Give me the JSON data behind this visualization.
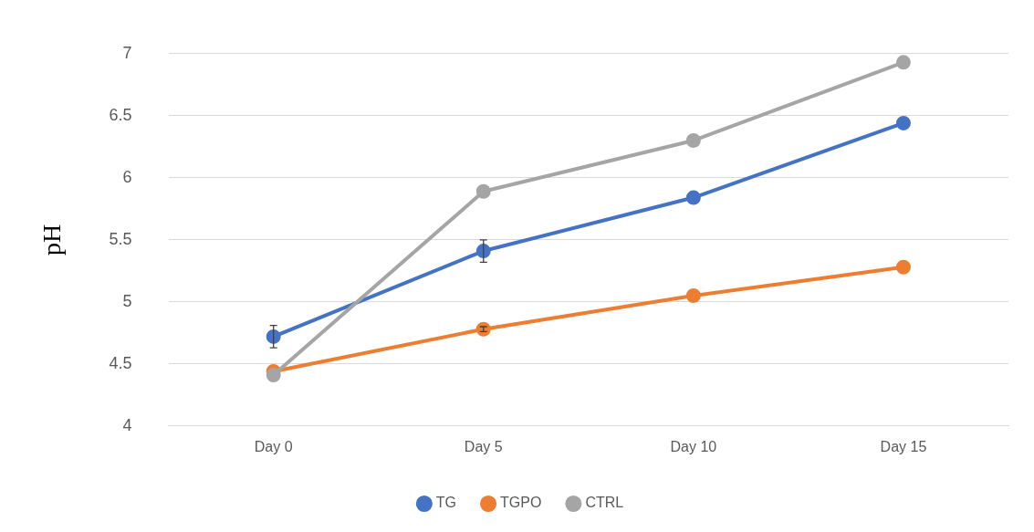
{
  "chart_data": {
    "type": "line",
    "ylabel": "pH",
    "categories": [
      "Day 0",
      "Day 5",
      "Day 10",
      "Day 15"
    ],
    "series": [
      {
        "name": "TG",
        "color": "#4472c4",
        "values": [
          4.72,
          5.41,
          5.84,
          6.44
        ],
        "errors": [
          0.09,
          0.09,
          null,
          null
        ]
      },
      {
        "name": "TGPO",
        "color": "#ed7d31",
        "values": [
          4.44,
          4.78,
          5.05,
          5.28
        ],
        "errors": [
          null,
          0.02,
          null,
          null
        ]
      },
      {
        "name": "CTRL",
        "color": "#a5a5a5",
        "values": [
          4.41,
          5.89,
          6.3,
          6.93
        ]
      }
    ],
    "ylim": [
      4,
      7
    ],
    "yticks": [
      4,
      4.5,
      5,
      5.5,
      6,
      6.5,
      7
    ],
    "grid": "y",
    "legend": "bottom",
    "marker": "circle",
    "line_style": "solid"
  }
}
